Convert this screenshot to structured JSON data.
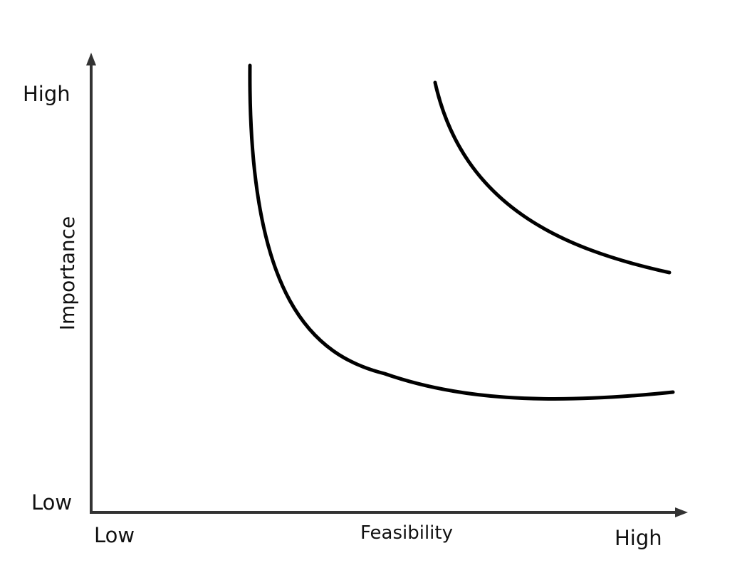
{
  "axes": {
    "x": {
      "title": "Feasibility",
      "low_label": "Low",
      "high_label": "High"
    },
    "y": {
      "title": "Importance",
      "low_label": "Low",
      "high_label": "High"
    }
  },
  "curves": [
    {
      "name": ""
    },
    {
      "name": ""
    }
  ],
  "colors": {
    "line": "#000000",
    "axis": "#333333",
    "text": "#111111",
    "background": "#ffffff"
  }
}
